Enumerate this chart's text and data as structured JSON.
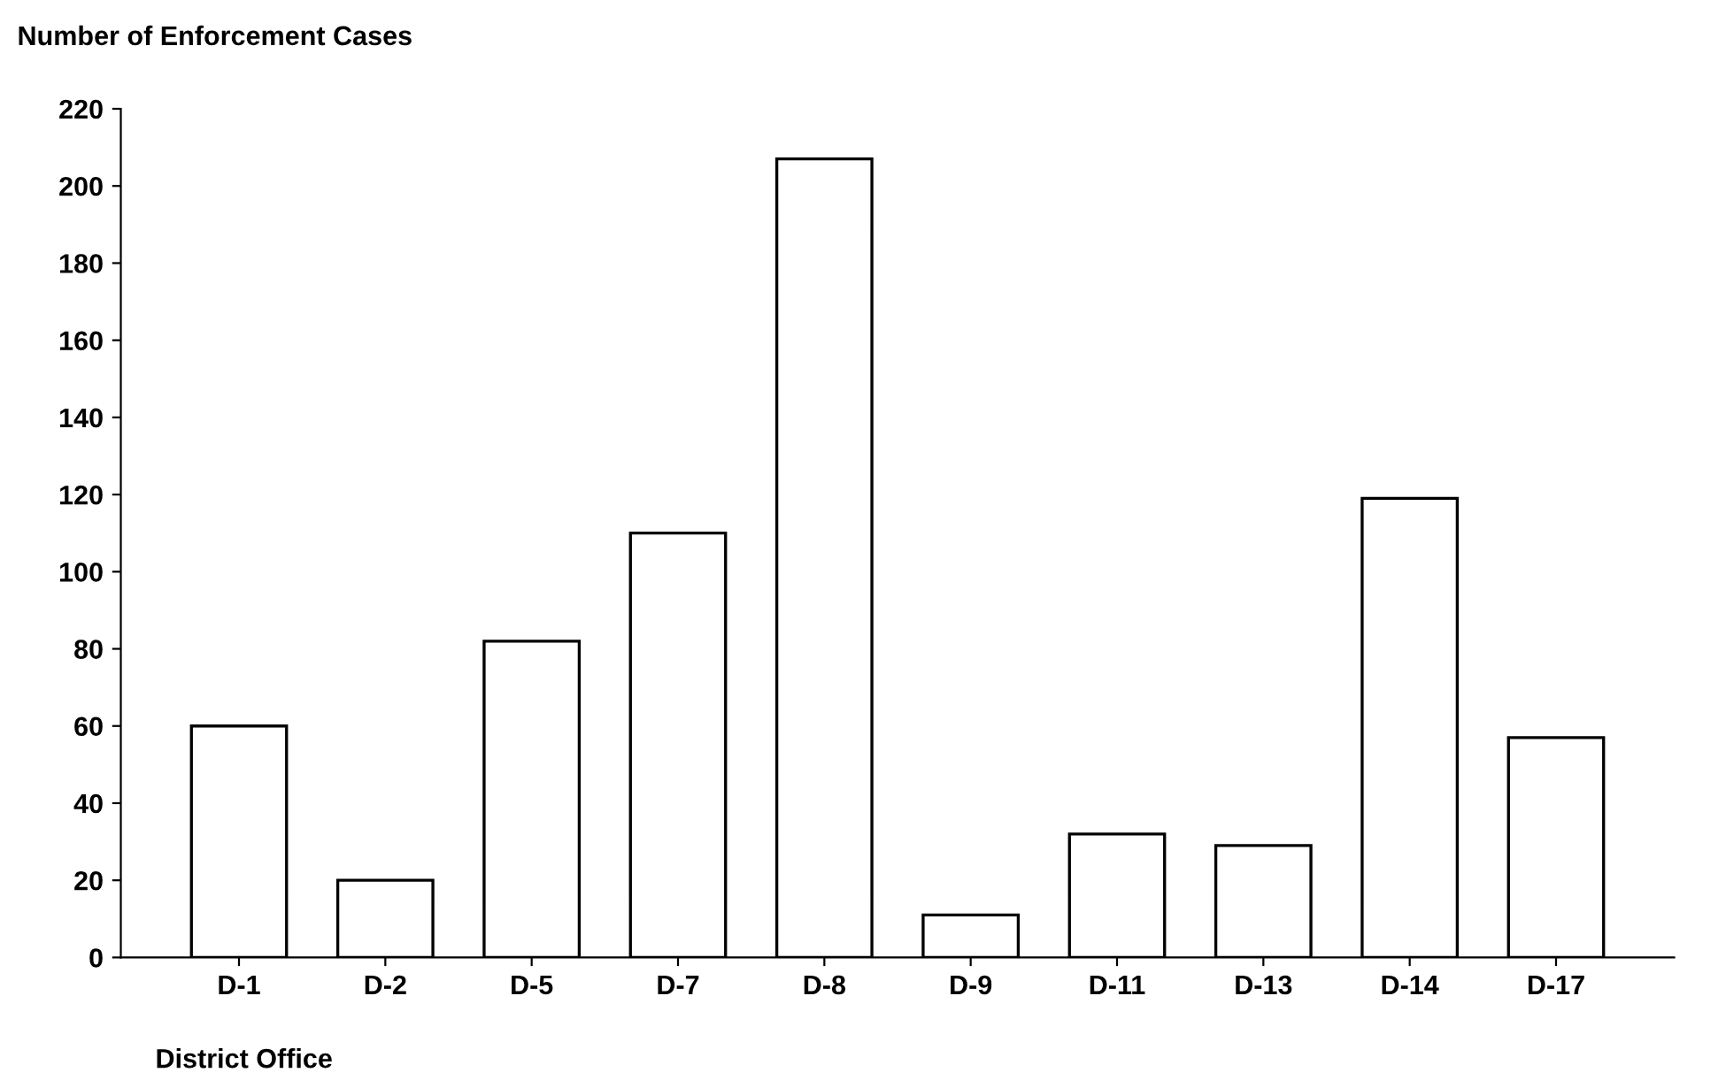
{
  "chart_data": {
    "type": "bar",
    "ylabel": "Number of Enforcement Cases",
    "xlabel": "District Office",
    "categories": [
      "D-1",
      "D-2",
      "D-5",
      "D-7",
      "D-8",
      "D-9",
      "D-11",
      "D-13",
      "D-14",
      "D-17"
    ],
    "values": [
      60,
      20,
      82,
      110,
      207,
      11,
      32,
      29,
      119,
      57
    ],
    "color": "#ffffff",
    "ylim": [
      0,
      220
    ],
    "yticks": [
      0,
      20,
      40,
      60,
      80,
      100,
      120,
      140,
      160,
      180,
      200,
      220
    ],
    "grid": false
  }
}
